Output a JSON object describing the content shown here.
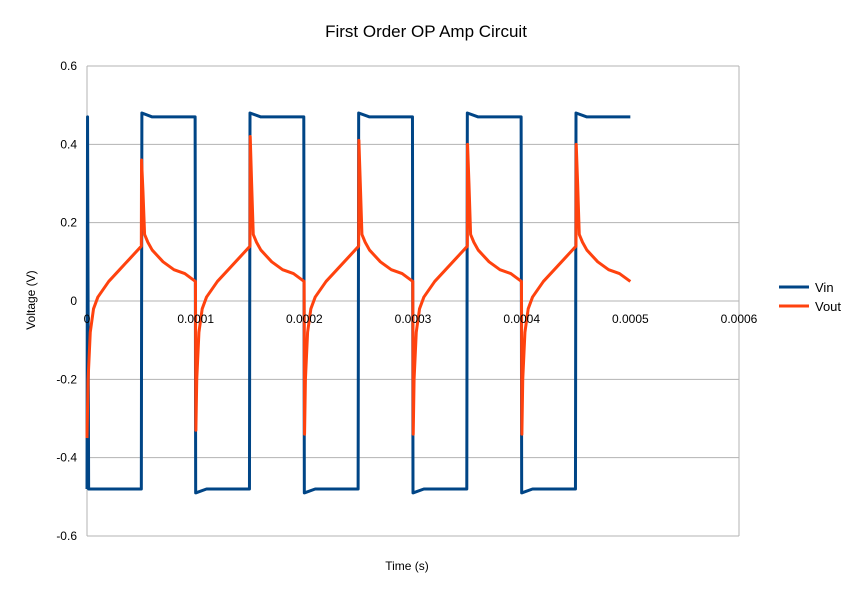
{
  "chart_data": {
    "type": "line",
    "title": "First Order OP Amp Circuit",
    "xlabel": "Time (s)",
    "ylabel": "Voltage (V)",
    "xlim": [
      0,
      0.0006
    ],
    "ylim": [
      -0.6,
      0.6
    ],
    "x_ticks": [
      {
        "value": 0,
        "label": "0"
      },
      {
        "value": 0.0001,
        "label": "0.0001"
      },
      {
        "value": 0.0002,
        "label": "0.0002"
      },
      {
        "value": 0.0003,
        "label": "0.0003"
      },
      {
        "value": 0.0004,
        "label": "0.0004"
      },
      {
        "value": 0.0005,
        "label": "0.0005"
      },
      {
        "value": 0.0006,
        "label": "0.0006"
      }
    ],
    "y_ticks": [
      {
        "value": 0.6,
        "label": "0.6"
      },
      {
        "value": 0.4,
        "label": "0.4"
      },
      {
        "value": 0.2,
        "label": "0.2"
      },
      {
        "value": 0,
        "label": "0"
      },
      {
        "value": -0.2,
        "label": "-0.2"
      },
      {
        "value": -0.4,
        "label": "-0.4"
      },
      {
        "value": -0.6,
        "label": "-0.6"
      }
    ],
    "grid": "horizontal",
    "legend_position": "right",
    "series": [
      {
        "name": "Vin",
        "color": "#004586",
        "points": [
          [
            0,
            -0.48
          ],
          [
            5e-07,
            0.47
          ],
          [
            1.5e-06,
            -0.48
          ],
          [
            1e-05,
            -0.48
          ],
          [
            2e-05,
            -0.48
          ],
          [
            3e-05,
            -0.48
          ],
          [
            4e-05,
            -0.48
          ],
          [
            5e-05,
            -0.48
          ],
          [
            5.05e-05,
            0.48
          ],
          [
            6e-05,
            0.47
          ],
          [
            7e-05,
            0.47
          ],
          [
            8e-05,
            0.47
          ],
          [
            9e-05,
            0.47
          ],
          [
            9.95e-05,
            0.47
          ],
          [
            0.0001,
            -0.49
          ],
          [
            0.00011,
            -0.48
          ],
          [
            0.00012,
            -0.48
          ],
          [
            0.00013,
            -0.48
          ],
          [
            0.00014,
            -0.48
          ],
          [
            0.0001495,
            -0.48
          ],
          [
            0.00015,
            0.48
          ],
          [
            0.00016,
            0.47
          ],
          [
            0.00017,
            0.47
          ],
          [
            0.00018,
            0.47
          ],
          [
            0.00019,
            0.47
          ],
          [
            0.0001995,
            0.47
          ],
          [
            0.0002,
            -0.49
          ],
          [
            0.00021,
            -0.48
          ],
          [
            0.00022,
            -0.48
          ],
          [
            0.00023,
            -0.48
          ],
          [
            0.00024,
            -0.48
          ],
          [
            0.0002495,
            -0.48
          ],
          [
            0.00025,
            0.48
          ],
          [
            0.00026,
            0.47
          ],
          [
            0.00027,
            0.47
          ],
          [
            0.00028,
            0.47
          ],
          [
            0.00029,
            0.47
          ],
          [
            0.0002995,
            0.47
          ],
          [
            0.0003,
            -0.49
          ],
          [
            0.00031,
            -0.48
          ],
          [
            0.00032,
            -0.48
          ],
          [
            0.00033,
            -0.48
          ],
          [
            0.00034,
            -0.48
          ],
          [
            0.0003495,
            -0.48
          ],
          [
            0.00035,
            0.48
          ],
          [
            0.00036,
            0.47
          ],
          [
            0.00037,
            0.47
          ],
          [
            0.00038,
            0.47
          ],
          [
            0.00039,
            0.47
          ],
          [
            0.0003995,
            0.47
          ],
          [
            0.0004,
            -0.49
          ],
          [
            0.00041,
            -0.48
          ],
          [
            0.00042,
            -0.48
          ],
          [
            0.00043,
            -0.48
          ],
          [
            0.00044,
            -0.48
          ],
          [
            0.0004495,
            -0.48
          ],
          [
            0.00045,
            0.48
          ],
          [
            0.00046,
            0.47
          ],
          [
            0.00047,
            0.47
          ],
          [
            0.00048,
            0.47
          ],
          [
            0.00049,
            0.47
          ],
          [
            0.0005,
            0.47
          ]
        ]
      },
      {
        "name": "Vout",
        "color": "#ff420e",
        "points": [
          [
            0,
            -0.35
          ],
          [
            1e-06,
            -0.2
          ],
          [
            3e-06,
            -0.08
          ],
          [
            6e-06,
            -0.02
          ],
          [
            1e-05,
            0.01
          ],
          [
            2e-05,
            0.05
          ],
          [
            3e-05,
            0.08
          ],
          [
            4e-05,
            0.11
          ],
          [
            5e-05,
            0.14
          ],
          [
            5.02e-05,
            0.36
          ],
          [
            5.15e-05,
            0.28
          ],
          [
            5.3e-05,
            0.17
          ],
          [
            5.6e-05,
            0.15
          ],
          [
            6e-05,
            0.13
          ],
          [
            7e-05,
            0.1
          ],
          [
            8e-05,
            0.08
          ],
          [
            9e-05,
            0.07
          ],
          [
            9.98e-05,
            0.05
          ],
          [
            0.0001002,
            -0.33
          ],
          [
            0.000101,
            -0.2
          ],
          [
            0.000103,
            -0.08
          ],
          [
            0.000106,
            -0.02
          ],
          [
            0.00011,
            0.01
          ],
          [
            0.00012,
            0.05
          ],
          [
            0.00013,
            0.08
          ],
          [
            0.00014,
            0.11
          ],
          [
            0.00015,
            0.14
          ],
          [
            0.0001502,
            0.42
          ],
          [
            0.0001515,
            0.3
          ],
          [
            0.000153,
            0.17
          ],
          [
            0.000156,
            0.15
          ],
          [
            0.00016,
            0.13
          ],
          [
            0.00017,
            0.1
          ],
          [
            0.00018,
            0.08
          ],
          [
            0.00019,
            0.07
          ],
          [
            0.0001998,
            0.05
          ],
          [
            0.0002002,
            -0.34
          ],
          [
            0.000201,
            -0.2
          ],
          [
            0.000203,
            -0.08
          ],
          [
            0.000206,
            -0.02
          ],
          [
            0.00021,
            0.01
          ],
          [
            0.00022,
            0.05
          ],
          [
            0.00023,
            0.08
          ],
          [
            0.00024,
            0.11
          ],
          [
            0.00025,
            0.14
          ],
          [
            0.0002502,
            0.41
          ],
          [
            0.0002515,
            0.3
          ],
          [
            0.000253,
            0.17
          ],
          [
            0.000256,
            0.15
          ],
          [
            0.00026,
            0.13
          ],
          [
            0.00027,
            0.1
          ],
          [
            0.00028,
            0.08
          ],
          [
            0.00029,
            0.07
          ],
          [
            0.0002998,
            0.05
          ],
          [
            0.0003002,
            -0.34
          ],
          [
            0.000301,
            -0.2
          ],
          [
            0.000303,
            -0.08
          ],
          [
            0.000306,
            -0.02
          ],
          [
            0.00031,
            0.01
          ],
          [
            0.00032,
            0.05
          ],
          [
            0.00033,
            0.08
          ],
          [
            0.00034,
            0.11
          ],
          [
            0.00035,
            0.14
          ],
          [
            0.0003502,
            0.4
          ],
          [
            0.0003515,
            0.3
          ],
          [
            0.000353,
            0.17
          ],
          [
            0.000356,
            0.15
          ],
          [
            0.00036,
            0.13
          ],
          [
            0.00037,
            0.1
          ],
          [
            0.00038,
            0.08
          ],
          [
            0.00039,
            0.07
          ],
          [
            0.0003998,
            0.05
          ],
          [
            0.0004002,
            -0.34
          ],
          [
            0.000401,
            -0.2
          ],
          [
            0.000403,
            -0.08
          ],
          [
            0.000406,
            -0.02
          ],
          [
            0.00041,
            0.01
          ],
          [
            0.00042,
            0.05
          ],
          [
            0.00043,
            0.08
          ],
          [
            0.00044,
            0.11
          ],
          [
            0.00045,
            0.14
          ],
          [
            0.0004502,
            0.4
          ],
          [
            0.0004515,
            0.3
          ],
          [
            0.000453,
            0.17
          ],
          [
            0.000456,
            0.15
          ],
          [
            0.00046,
            0.13
          ],
          [
            0.00047,
            0.1
          ],
          [
            0.00048,
            0.08
          ],
          [
            0.00049,
            0.07
          ],
          [
            0.0005,
            0.05
          ]
        ]
      }
    ]
  }
}
